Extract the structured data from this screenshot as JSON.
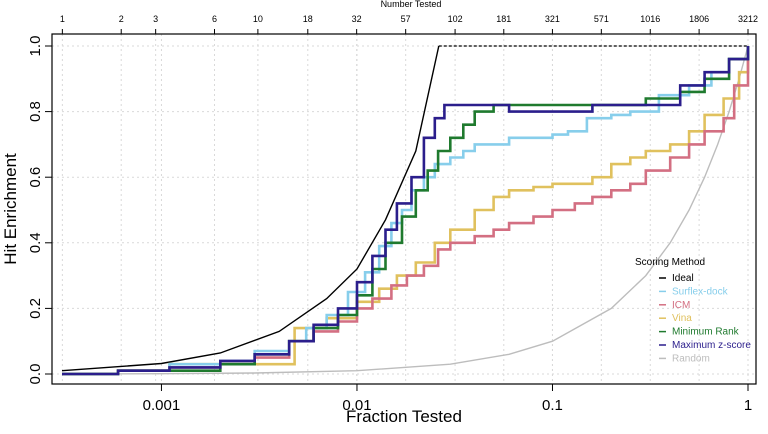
{
  "chart_data": {
    "type": "line",
    "xlabel": "Fraction Tested",
    "ylabel": "Hit Enrichment",
    "top_axis_label": "Number Tested",
    "x_scale": "log",
    "xlim": [
      0.00031,
      1
    ],
    "ylim": [
      0,
      1
    ],
    "grid": true,
    "x_ticks": [
      {
        "value": 0.001,
        "label": "0.001"
      },
      {
        "value": 0.01,
        "label": "0.01"
      },
      {
        "value": 0.1,
        "label": "0.1"
      },
      {
        "value": 1,
        "label": "1"
      }
    ],
    "y_ticks": [
      {
        "value": 0.0,
        "label": "0.0"
      },
      {
        "value": 0.2,
        "label": "0.2"
      },
      {
        "value": 0.4,
        "label": "0.4"
      },
      {
        "value": 0.6,
        "label": "0.6"
      },
      {
        "value": 0.8,
        "label": "0.8"
      },
      {
        "value": 1.0,
        "label": "1.0"
      }
    ],
    "top_ticks": [
      {
        "value": 1,
        "label": "1"
      },
      {
        "value": 2,
        "label": "2"
      },
      {
        "value": 3,
        "label": "3"
      },
      {
        "value": 6,
        "label": "6"
      },
      {
        "value": 10,
        "label": "10"
      },
      {
        "value": 18,
        "label": "18"
      },
      {
        "value": 32,
        "label": "32"
      },
      {
        "value": 57,
        "label": "57"
      },
      {
        "value": 102,
        "label": "102"
      },
      {
        "value": 181,
        "label": "181"
      },
      {
        "value": 321,
        "label": "321"
      },
      {
        "value": 571,
        "label": "571"
      },
      {
        "value": 1016,
        "label": "1016"
      },
      {
        "value": 1806,
        "label": "1806"
      },
      {
        "value": 3212,
        "label": "3212"
      }
    ],
    "top_total": 3212,
    "legend": {
      "title": "Scoring Method",
      "position": "bottom-right"
    },
    "series": [
      {
        "name": "Ideal",
        "color": "#000000",
        "step": false,
        "x": [
          0.00031,
          0.001,
          0.002,
          0.004,
          0.007,
          0.01,
          0.014,
          0.02,
          0.0262,
          1
        ],
        "y": [
          0.01,
          0.032,
          0.064,
          0.13,
          0.23,
          0.32,
          0.47,
          0.68,
          1.0,
          1.0
        ]
      },
      {
        "name": "Surflex-dock",
        "color": "#87ceeb",
        "step": true,
        "x": [
          0.00031,
          0.0006,
          0.0011,
          0.002,
          0.003,
          0.0045,
          0.0055,
          0.007,
          0.009,
          0.011,
          0.013,
          0.015,
          0.017,
          0.019,
          0.022,
          0.025,
          0.03,
          0.035,
          0.04,
          0.05,
          0.06,
          0.08,
          0.1,
          0.12,
          0.15,
          0.2,
          0.25,
          0.35,
          0.5,
          0.65,
          0.8,
          1
        ],
        "y": [
          0.0,
          0.01,
          0.03,
          0.04,
          0.07,
          0.1,
          0.14,
          0.18,
          0.25,
          0.31,
          0.39,
          0.46,
          0.5,
          0.56,
          0.6,
          0.64,
          0.66,
          0.68,
          0.7,
          0.7,
          0.72,
          0.72,
          0.73,
          0.74,
          0.78,
          0.79,
          0.8,
          0.85,
          0.88,
          0.92,
          0.96,
          1.0
        ]
      },
      {
        "name": "ICM",
        "color": "#d36f82",
        "step": true,
        "x": [
          0.00031,
          0.0006,
          0.0011,
          0.002,
          0.003,
          0.0045,
          0.006,
          0.008,
          0.01,
          0.012,
          0.015,
          0.018,
          0.022,
          0.026,
          0.03,
          0.04,
          0.05,
          0.06,
          0.08,
          0.1,
          0.13,
          0.16,
          0.2,
          0.25,
          0.3,
          0.4,
          0.5,
          0.6,
          0.75,
          0.85,
          1
        ],
        "y": [
          0.0,
          0.01,
          0.02,
          0.03,
          0.05,
          0.1,
          0.13,
          0.16,
          0.2,
          0.23,
          0.27,
          0.3,
          0.33,
          0.38,
          0.4,
          0.42,
          0.44,
          0.46,
          0.48,
          0.5,
          0.52,
          0.54,
          0.56,
          0.58,
          0.62,
          0.66,
          0.7,
          0.74,
          0.78,
          0.88,
          1.0
        ]
      },
      {
        "name": "Vina",
        "color": "#e0c15e",
        "step": true,
        "x": [
          0.00031,
          0.0006,
          0.0011,
          0.002,
          0.0045,
          0.0048,
          0.007,
          0.01,
          0.013,
          0.016,
          0.02,
          0.025,
          0.03,
          0.04,
          0.05,
          0.06,
          0.08,
          0.1,
          0.13,
          0.16,
          0.2,
          0.25,
          0.3,
          0.4,
          0.5,
          0.6,
          0.75,
          0.9,
          1
        ],
        "y": [
          0.0,
          0.01,
          0.03,
          0.03,
          0.03,
          0.14,
          0.17,
          0.22,
          0.26,
          0.3,
          0.34,
          0.4,
          0.44,
          0.5,
          0.54,
          0.56,
          0.57,
          0.58,
          0.58,
          0.6,
          0.64,
          0.66,
          0.68,
          0.7,
          0.74,
          0.79,
          0.84,
          0.92,
          1.0
        ]
      },
      {
        "name": "Minimum Rank",
        "color": "#1f7a2e",
        "step": true,
        "x": [
          0.00031,
          0.0006,
          0.0011,
          0.002,
          0.003,
          0.0045,
          0.006,
          0.008,
          0.01,
          0.012,
          0.014,
          0.017,
          0.02,
          0.023,
          0.026,
          0.03,
          0.035,
          0.04,
          0.05,
          0.06,
          0.1,
          0.15,
          0.2,
          0.3,
          0.45,
          0.6,
          0.8,
          1
        ],
        "y": [
          0.0,
          0.01,
          0.01,
          0.03,
          0.06,
          0.1,
          0.14,
          0.18,
          0.24,
          0.32,
          0.4,
          0.48,
          0.56,
          0.62,
          0.68,
          0.72,
          0.76,
          0.8,
          0.82,
          0.82,
          0.82,
          0.82,
          0.82,
          0.84,
          0.86,
          0.9,
          0.96,
          1.0
        ]
      },
      {
        "name": "Maximum z-score",
        "color": "#2b1e8c",
        "step": true,
        "x": [
          0.00031,
          0.0006,
          0.0011,
          0.002,
          0.003,
          0.0045,
          0.006,
          0.008,
          0.01,
          0.012,
          0.014,
          0.016,
          0.019,
          0.022,
          0.025,
          0.028,
          0.04,
          0.06,
          0.1,
          0.13,
          0.16,
          0.2,
          0.3,
          0.45,
          0.6,
          0.8,
          1
        ],
        "y": [
          0.0,
          0.01,
          0.02,
          0.04,
          0.06,
          0.1,
          0.15,
          0.2,
          0.28,
          0.36,
          0.44,
          0.52,
          0.6,
          0.72,
          0.78,
          0.82,
          0.82,
          0.8,
          0.8,
          0.8,
          0.82,
          0.82,
          0.82,
          0.88,
          0.92,
          0.96,
          1.0
        ]
      },
      {
        "name": "Random",
        "color": "#bdbdbd",
        "step": false,
        "x": [
          0.00031,
          0.001,
          0.003,
          0.01,
          0.03,
          0.06,
          0.1,
          0.2,
          0.3,
          0.4,
          0.5,
          0.6,
          0.7,
          0.8,
          0.9,
          1
        ],
        "y": [
          0.0003,
          0.001,
          0.003,
          0.01,
          0.03,
          0.06,
          0.1,
          0.2,
          0.3,
          0.4,
          0.5,
          0.6,
          0.7,
          0.8,
          0.9,
          1.0
        ]
      }
    ]
  }
}
